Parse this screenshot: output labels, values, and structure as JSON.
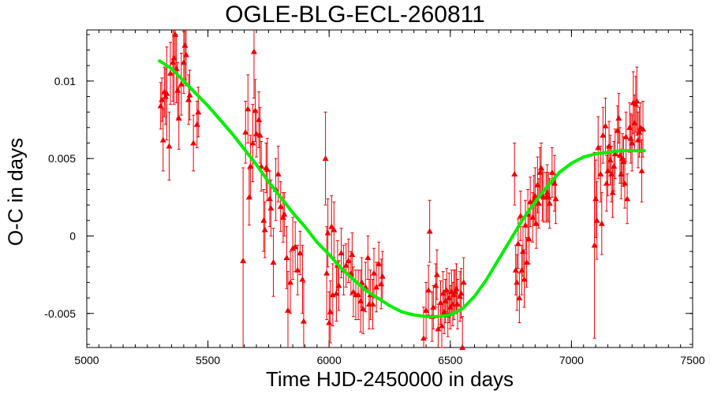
{
  "chart_data": {
    "type": "scatter",
    "title": "OGLE-BLG-ECL-260811",
    "xlabel": "Time HJD-2450000 in days",
    "ylabel": "O-C in days",
    "xlim": [
      5000,
      7500
    ],
    "ylim": [
      -0.0072,
      0.0133
    ],
    "xticks": [
      5000,
      5500,
      6000,
      6500,
      7000,
      7500
    ],
    "xtick_labels": [
      "5000",
      "5500",
      "6000",
      "6500",
      "7000",
      "7500"
    ],
    "yticks": [
      -0.005,
      0,
      0.005,
      0.01
    ],
    "ytick_labels": [
      "-0.005",
      "0",
      "0.005",
      "0.01"
    ],
    "grid": false,
    "colors": {
      "points": "#ee0000",
      "fit": "#00ee00"
    },
    "series": [
      {
        "type": "scatter_errorbars",
        "marker": "triangle",
        "points": [
          [
            5305,
            0.0084,
            0.0015
          ],
          [
            5310,
            0.0088,
            0.0014
          ],
          [
            5315,
            0.0062,
            0.002
          ],
          [
            5320,
            0.0093,
            0.0016
          ],
          [
            5325,
            0.009,
            0.0018
          ],
          [
            5330,
            0.0092,
            0.003
          ],
          [
            5340,
            0.0058,
            0.0022
          ],
          [
            5345,
            0.0105,
            0.002
          ],
          [
            5355,
            0.0112,
            0.0025
          ],
          [
            5360,
            0.0115,
            0.003
          ],
          [
            5365,
            0.013,
            0.0025
          ],
          [
            5370,
            0.0108,
            0.0022
          ],
          [
            5375,
            0.0094,
            0.0018
          ],
          [
            5380,
            0.0076,
            0.002
          ],
          [
            5390,
            0.0098,
            0.002
          ],
          [
            5400,
            0.0112,
            0.002
          ],
          [
            5405,
            0.0123,
            0.0022
          ],
          [
            5410,
            0.0117,
            0.002
          ],
          [
            5420,
            0.0088,
            0.0016
          ],
          [
            5425,
            0.0091,
            0.0016
          ],
          [
            5440,
            0.006,
            0.0018
          ],
          [
            5455,
            0.0072,
            0.0015
          ],
          [
            5460,
            0.008,
            0.0016
          ],
          [
            5645,
            -0.0016,
            0.006
          ],
          [
            5655,
            0.0067,
            0.002
          ],
          [
            5665,
            0.0082,
            0.0022
          ],
          [
            5670,
            0.0025,
            0.0018
          ],
          [
            5675,
            0.0045,
            0.002
          ],
          [
            5685,
            0.006,
            0.0025
          ],
          [
            5690,
            0.0119,
            0.003
          ],
          [
            5695,
            0.0081,
            0.002
          ],
          [
            5700,
            0.0066,
            0.0015
          ],
          [
            5710,
            0.0075,
            0.0018
          ],
          [
            5715,
            0.0065,
            0.0018
          ],
          [
            5720,
            0.0045,
            0.0016
          ],
          [
            5730,
            0.001,
            0.002
          ],
          [
            5735,
            0.0004,
            0.0018
          ],
          [
            5740,
            0.0044,
            0.0016
          ],
          [
            5745,
            0.0043,
            0.002
          ],
          [
            5755,
            0.0024,
            0.0018
          ],
          [
            5760,
            0.0018,
            0.0018
          ],
          [
            5770,
            -0.0017,
            0.0022
          ],
          [
            5780,
            0.003,
            0.002
          ],
          [
            5790,
            0.004,
            0.0018
          ],
          [
            5800,
            0.0019,
            0.0016
          ],
          [
            5810,
            0.0012,
            0.0016
          ],
          [
            5815,
            0.0014,
            0.0014
          ],
          [
            5825,
            -0.0014,
            0.002
          ],
          [
            5830,
            -0.0048,
            0.0025
          ],
          [
            5840,
            -0.003,
            0.002
          ],
          [
            5850,
            -0.0008,
            0.002
          ],
          [
            5860,
            -0.0007,
            0.0016
          ],
          [
            5870,
            -0.0022,
            0.0016
          ],
          [
            5880,
            -0.0011,
            0.0014
          ],
          [
            5890,
            -0.0028,
            0.0022
          ],
          [
            5895,
            -0.0055,
            0.0025
          ],
          [
            5985,
            0.005,
            0.003
          ],
          [
            5990,
            -0.0024,
            0.003
          ],
          [
            5995,
            0.0002,
            0.0022
          ],
          [
            6000,
            -0.0056,
            0.002
          ],
          [
            6005,
            -0.0049,
            0.002
          ],
          [
            6010,
            0.0006,
            0.002
          ],
          [
            6015,
            -0.0038,
            0.002
          ],
          [
            6020,
            0.0004,
            0.0018
          ],
          [
            6030,
            -0.0037,
            0.0018
          ],
          [
            6035,
            -0.0019,
            0.0016
          ],
          [
            6040,
            -0.0032,
            0.0016
          ],
          [
            6050,
            -0.0011,
            0.0016
          ],
          [
            6060,
            -0.0022,
            0.0016
          ],
          [
            6070,
            -0.0019,
            0.0014
          ],
          [
            6080,
            -0.0016,
            0.0014
          ],
          [
            6090,
            -0.0024,
            0.0014
          ],
          [
            6095,
            -0.0012,
            0.0014
          ],
          [
            6100,
            -0.0036,
            0.0016
          ],
          [
            6110,
            -0.0038,
            0.0016
          ],
          [
            6120,
            -0.0038,
            0.0016
          ],
          [
            6130,
            -0.0042,
            0.002
          ],
          [
            6135,
            -0.003,
            0.0016
          ],
          [
            6140,
            -0.0047,
            0.0016
          ],
          [
            6150,
            -0.0033,
            0.0016
          ],
          [
            6160,
            -0.0014,
            0.0014
          ],
          [
            6165,
            -0.0044,
            0.0016
          ],
          [
            6170,
            -0.0038,
            0.0016
          ],
          [
            6180,
            -0.0044,
            0.0016
          ],
          [
            6185,
            -0.0024,
            0.0016
          ],
          [
            6195,
            -0.0033,
            0.0016
          ],
          [
            6205,
            -0.0018,
            0.0014
          ],
          [
            6215,
            -0.0031,
            0.0016
          ],
          [
            6220,
            -0.0026,
            0.0016
          ],
          [
            6390,
            -0.0066,
            0.002
          ],
          [
            6400,
            -0.0048,
            0.0018
          ],
          [
            6410,
            -0.0035,
            0.0016
          ],
          [
            6415,
            0.0003,
            0.002
          ],
          [
            6425,
            -0.0052,
            0.0016
          ],
          [
            6430,
            -0.0046,
            0.0014
          ],
          [
            6440,
            -0.0032,
            0.0014
          ],
          [
            6445,
            -0.0025,
            0.0016
          ],
          [
            6450,
            -0.006,
            0.0016
          ],
          [
            6460,
            -0.0043,
            0.0014
          ],
          [
            6465,
            -0.0058,
            0.0014
          ],
          [
            6470,
            -0.0037,
            0.0014
          ],
          [
            6475,
            -0.0049,
            0.0014
          ],
          [
            6480,
            -0.0042,
            0.0014
          ],
          [
            6485,
            -0.0035,
            0.0014
          ],
          [
            6490,
            -0.0051,
            0.0014
          ],
          [
            6495,
            -0.004,
            0.0016
          ],
          [
            6500,
            -0.0046,
            0.0014
          ],
          [
            6505,
            -0.0036,
            0.0014
          ],
          [
            6510,
            -0.0044,
            0.0014
          ],
          [
            6515,
            -0.0038,
            0.0016
          ],
          [
            6520,
            -0.0036,
            0.0014
          ],
          [
            6525,
            -0.0034,
            0.0016
          ],
          [
            6530,
            -0.0044,
            0.0016
          ],
          [
            6540,
            -0.0039,
            0.0016
          ],
          [
            6545,
            -0.0037,
            0.0016
          ],
          [
            6550,
            -0.0072,
            0.002
          ],
          [
            6555,
            -0.003,
            0.0016
          ],
          [
            6765,
            0.004,
            0.002
          ],
          [
            6770,
            -0.0022,
            0.0016
          ],
          [
            6775,
            -0.003,
            0.0018
          ],
          [
            6780,
            -0.0005,
            0.0016
          ],
          [
            6785,
            -0.004,
            0.0016
          ],
          [
            6790,
            0.0013,
            0.0016
          ],
          [
            6795,
            -0.0022,
            0.0016
          ],
          [
            6800,
            -0.001,
            0.0016
          ],
          [
            6805,
            -0.0028,
            0.0018
          ],
          [
            6810,
            0.0007,
            0.0016
          ],
          [
            6815,
            -0.0017,
            0.0016
          ],
          [
            6820,
            0.0014,
            0.0016
          ],
          [
            6825,
            -0.0002,
            0.0016
          ],
          [
            6830,
            0.0022,
            0.0016
          ],
          [
            6840,
            0.0012,
            0.0016
          ],
          [
            6845,
            0.0023,
            0.0016
          ],
          [
            6850,
            0.0026,
            0.0018
          ],
          [
            6855,
            0.0008,
            0.0016
          ],
          [
            6860,
            0.0033,
            0.0018
          ],
          [
            6865,
            0.0021,
            0.0016
          ],
          [
            6870,
            0.0041,
            0.0016
          ],
          [
            6875,
            0.0044,
            0.0016
          ],
          [
            6880,
            0.0026,
            0.0016
          ],
          [
            6885,
            0.0025,
            0.0016
          ],
          [
            6895,
            0.0025,
            0.0016
          ],
          [
            6900,
            0.0028,
            0.0018
          ],
          [
            6905,
            0.0025,
            0.0016
          ],
          [
            6910,
            0.0021,
            0.0016
          ],
          [
            6920,
            0.0041,
            0.0016
          ],
          [
            6930,
            0.0034,
            0.0018
          ],
          [
            6935,
            0.0024,
            0.0016
          ],
          [
            7095,
            -0.0006,
            0.006
          ],
          [
            7100,
            0.0024,
            0.0025
          ],
          [
            7105,
            0.001,
            0.0025
          ],
          [
            7110,
            0.0057,
            0.002
          ],
          [
            7120,
            0.004,
            0.0018
          ],
          [
            7125,
            0.0008,
            0.002
          ],
          [
            7130,
            0.0065,
            0.0018
          ],
          [
            7140,
            0.0071,
            0.0018
          ],
          [
            7145,
            0.0034,
            0.0018
          ],
          [
            7150,
            0.0042,
            0.0016
          ],
          [
            7155,
            0.0058,
            0.0016
          ],
          [
            7160,
            0.0049,
            0.0016
          ],
          [
            7165,
            0.004,
            0.0018
          ],
          [
            7170,
            0.0028,
            0.0016
          ],
          [
            7175,
            0.0045,
            0.0016
          ],
          [
            7180,
            0.0053,
            0.0016
          ],
          [
            7190,
            0.0068,
            0.0016
          ],
          [
            7195,
            0.0076,
            0.0016
          ],
          [
            7200,
            0.0052,
            0.0018
          ],
          [
            7205,
            0.004,
            0.0016
          ],
          [
            7210,
            0.005,
            0.0016
          ],
          [
            7215,
            0.0048,
            0.0016
          ],
          [
            7220,
            0.0034,
            0.0016
          ],
          [
            7225,
            0.0064,
            0.0016
          ],
          [
            7230,
            0.0024,
            0.0016
          ],
          [
            7240,
            0.007,
            0.0016
          ],
          [
            7245,
            0.0063,
            0.0016
          ],
          [
            7250,
            0.006,
            0.0018
          ],
          [
            7255,
            0.0086,
            0.002
          ],
          [
            7260,
            0.0073,
            0.0018
          ],
          [
            7265,
            0.0085,
            0.0018
          ],
          [
            7270,
            0.0087,
            0.0022
          ],
          [
            7275,
            0.0062,
            0.0018
          ],
          [
            7280,
            0.0067,
            0.0016
          ],
          [
            7285,
            0.007,
            0.0016
          ],
          [
            7290,
            0.0042,
            0.002
          ],
          [
            7295,
            0.0069,
            0.0018
          ]
        ]
      },
      {
        "type": "line",
        "x": [
          5300,
          5350,
          5400,
          5450,
          5500,
          5550,
          5600,
          5650,
          5700,
          5750,
          5800,
          5850,
          5900,
          5950,
          6000,
          6050,
          6100,
          6150,
          6200,
          6250,
          6300,
          6350,
          6400,
          6450,
          6500,
          6550,
          6600,
          6650,
          6700,
          6750,
          6800,
          6850,
          6900,
          6950,
          7000,
          7050,
          7100,
          7150,
          7200,
          7250,
          7300
        ],
        "y": [
          0.0113,
          0.0108,
          0.01,
          0.0092,
          0.0084,
          0.0075,
          0.0066,
          0.0056,
          0.0046,
          0.0035,
          0.0025,
          0.0015,
          0.0006,
          -0.0004,
          -0.0012,
          -0.0021,
          -0.0028,
          -0.0035,
          -0.004,
          -0.0045,
          -0.0049,
          -0.0051,
          -0.0052,
          -0.0052,
          -0.0051,
          -0.0047,
          -0.0039,
          -0.0028,
          -0.0015,
          -0.0002,
          0.0011,
          0.0022,
          0.0032,
          0.0041,
          0.0047,
          0.0051,
          0.0053,
          0.0054,
          0.0055,
          0.0055,
          0.0055
        ]
      }
    ]
  }
}
